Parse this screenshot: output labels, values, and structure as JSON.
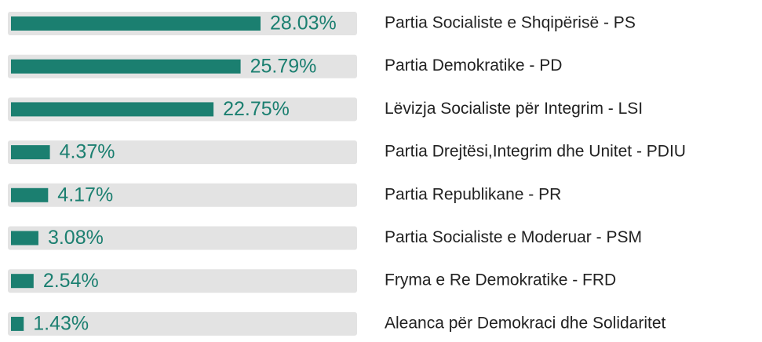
{
  "chart_data": {
    "type": "bar",
    "orientation": "horizontal",
    "color": "#1b7f70",
    "categories": [
      "Partia Socialiste e Shqipërisë - PS",
      "Partia Demokratike - PD",
      "Lëvizja Socialiste për Integrim - LSI",
      "Partia Drejtësi,Integrim dhe Unitet  - PDIU",
      "Partia Republikane - PR",
      "Partia Socialiste e Moderuar - PSM",
      "Fryma e Re Demokratike - FRD",
      "Aleanca për Demokraci dhe Solidaritet"
    ],
    "values": [
      28.03,
      25.79,
      22.75,
      4.37,
      4.17,
      3.08,
      2.54,
      1.43
    ],
    "value_labels": [
      "28.03%",
      "25.79%",
      "22.75%",
      "4.37%",
      "4.17%",
      "3.08%",
      "2.54%",
      "1.43%"
    ]
  }
}
